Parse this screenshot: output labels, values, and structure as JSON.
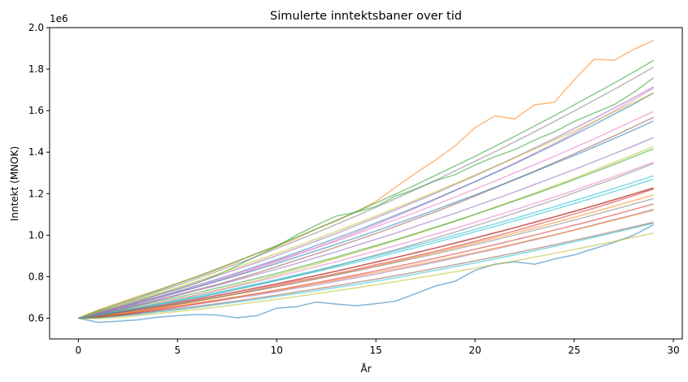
{
  "chart_data": {
    "type": "line",
    "title": "Simulerte inntektsbaner over tid",
    "xlabel": "År",
    "ylabel": "Inntekt (MNOK)",
    "offset_text": "1e6",
    "xlim": [
      -1.45,
      30.45
    ],
    "ylim": [
      500000,
      2000000
    ],
    "x_ticks": [
      0,
      5,
      10,
      15,
      20,
      25,
      30
    ],
    "x_tick_labels": [
      "0",
      "5",
      "10",
      "15",
      "20",
      "25",
      "30"
    ],
    "y_ticks": [
      600000,
      800000,
      1000000,
      1200000,
      1400000,
      1600000,
      1800000,
      2000000
    ],
    "y_tick_labels": [
      "0.6",
      "0.8",
      "1.0",
      "1.2",
      "1.4",
      "1.6",
      "1.8",
      "2.0"
    ],
    "grid": false,
    "legend": "none",
    "line_opacity": 0.55,
    "colors": [
      "#1f77b4",
      "#ff7f0e",
      "#2ca02c",
      "#d62728",
      "#9467bd",
      "#8c564b",
      "#e377c2",
      "#7f7f7f",
      "#bcbd22",
      "#17becf"
    ],
    "x": [
      0,
      1,
      2,
      3,
      4,
      5,
      6,
      7,
      8,
      9,
      10,
      11,
      12,
      13,
      14,
      15,
      16,
      17,
      18,
      19,
      20,
      21,
      22,
      23,
      24,
      25,
      26,
      27,
      28,
      29
    ],
    "series": [
      {
        "values": [
          600000,
          580000,
          585000,
          592000,
          605000,
          612000,
          618000,
          615000,
          602000,
          612000,
          648000,
          655000,
          678000,
          668000,
          660000,
          670000,
          682000,
          718000,
          755000,
          778000,
          830000,
          860000,
          872000,
          860000,
          885000,
          905000,
          935000,
          965000,
          1000000,
          1050000
        ]
      },
      {
        "values": [
          600000,
          640000,
          672000,
          705000,
          735000,
          768000,
          800000,
          835000,
          872000,
          912000,
          945000,
          985000,
          1030000,
          1070000,
          1112000,
          1162000,
          1232000,
          1298000,
          1362000,
          1430000,
          1518000,
          1575000,
          1560000,
          1628000,
          1640000,
          1748000,
          1848000,
          1842000,
          1895000,
          1938000
        ]
      },
      {
        "values": [
          600000,
          630000,
          652000,
          680000,
          712000,
          738000,
          770000,
          808000,
          852000,
          900000,
          945000,
          1000000,
          1048000,
          1092000,
          1110000,
          1138000,
          1188000,
          1222000,
          1262000,
          1292000,
          1338000,
          1378000,
          1412000,
          1458000,
          1498000,
          1548000,
          1588000,
          1628000,
          1688000,
          1758000
        ]
      },
      {
        "values": [
          600000,
          608000,
          618000,
          630000,
          648000,
          666000,
          682000,
          700000,
          718000,
          738000,
          758000,
          778000,
          795000,
          815000,
          835000,
          858000,
          878000,
          900000,
          922000,
          946000,
          970000,
          995000,
          1020000,
          1048000,
          1075000,
          1102000,
          1130000,
          1160000,
          1190000,
          1222000
        ]
      },
      {
        "values": [
          600000,
          606000,
          612000,
          625000,
          640000,
          652000,
          668000,
          682000,
          698000,
          712000,
          728000,
          745000,
          760000,
          778000,
          795000,
          812000,
          832000,
          850000,
          870000,
          890000,
          912000,
          932000,
          955000,
          978000,
          1000000,
          1025000,
          1050000,
          1075000,
          1098000,
          1125000
        ]
      },
      {
        "values": [
          600000,
          618000,
          640000,
          662000,
          688000,
          712000,
          738000,
          762000,
          790000,
          818000,
          848000,
          880000,
          910000,
          942000,
          975000,
          1008000,
          1042000,
          1078000,
          1112000,
          1150000,
          1188000,
          1228000,
          1268000,
          1308000,
          1350000,
          1392000,
          1435000,
          1478000,
          1522000,
          1568000
        ]
      },
      {
        "values": [
          600000,
          622000,
          645000,
          670000,
          695000,
          722000,
          750000,
          778000,
          808000,
          840000,
          872000,
          905000,
          940000,
          975000,
          1012000,
          1050000,
          1090000,
          1130000,
          1172000,
          1215000,
          1258000,
          1302000,
          1348000,
          1395000,
          1442000,
          1492000,
          1545000,
          1598000,
          1652000,
          1708000
        ]
      },
      {
        "values": [
          600000,
          612000,
          628000,
          645000,
          662000,
          680000,
          698000,
          718000,
          738000,
          760000,
          782000,
          805000,
          828000,
          852000,
          878000,
          904000,
          930000,
          958000,
          986000,
          1015000,
          1045000,
          1075000,
          1106000,
          1138000,
          1170000,
          1204000,
          1238000,
          1272000,
          1308000,
          1345000
        ]
      },
      {
        "values": [
          600000,
          615000,
          632000,
          650000,
          670000,
          690000,
          712000,
          735000,
          758000,
          782000,
          808000,
          834000,
          860000,
          888000,
          916000,
          945000,
          975000,
          1005000,
          1036000,
          1068000,
          1100000,
          1134000,
          1168000,
          1202000,
          1238000,
          1274000,
          1312000,
          1350000,
          1388000,
          1428000
        ]
      },
      {
        "values": [
          600000,
          602000,
          610000,
          618000,
          630000,
          640000,
          652000,
          665000,
          678000,
          690000,
          705000,
          718000,
          732000,
          748000,
          762000,
          778000,
          795000,
          812000,
          830000,
          848000,
          866000,
          885000,
          905000,
          925000,
          946000,
          968000,
          990000,
          1012000,
          1035000,
          1058000
        ]
      },
      {
        "values": [
          600000,
          625000,
          650000,
          676000,
          702000,
          730000,
          758000,
          788000,
          818000,
          850000,
          882000,
          915000,
          950000,
          985000,
          1020000,
          1058000,
          1096000,
          1135000,
          1175000,
          1216000,
          1258000,
          1300000,
          1344000,
          1390000,
          1436000,
          1484000,
          1532000,
          1582000,
          1632000,
          1685000
        ]
      },
      {
        "values": [
          600000,
          610000,
          622000,
          636000,
          650000,
          666000,
          682000,
          699000,
          716000,
          734000,
          752000,
          771000,
          790000,
          810000,
          830000,
          851000,
          872000,
          894000,
          916000,
          939000,
          962000,
          986000,
          1010000,
          1035000,
          1060000,
          1086000,
          1112000,
          1139000,
          1166000,
          1194000
        ]
      },
      {
        "values": [
          600000,
          620000,
          638000,
          658000,
          680000,
          700000,
          722000,
          745000,
          768000,
          792000,
          816000,
          842000,
          868000,
          894000,
          922000,
          950000,
          978000,
          1008000,
          1038000,
          1068000,
          1100000,
          1132000,
          1165000,
          1198000,
          1232000,
          1268000,
          1304000,
          1340000,
          1378000,
          1416000
        ]
      },
      {
        "values": [
          600000,
          605000,
          615000,
          628000,
          641000,
          655000,
          670000,
          686000,
          702000,
          718000,
          735000,
          753000,
          771000,
          790000,
          808000,
          828000,
          848000,
          868000,
          889000,
          910000,
          932000,
          954000,
          977000,
          1000000,
          1024000,
          1048000,
          1072000,
          1098000,
          1124000,
          1150000
        ]
      },
      {
        "values": [
          600000,
          628000,
          655000,
          684000,
          712000,
          742000,
          772000,
          804000,
          836000,
          868000,
          902000,
          937000,
          972000,
          1008000,
          1046000,
          1084000,
          1122000,
          1162000,
          1202000,
          1244000,
          1286000,
          1330000,
          1374000,
          1420000,
          1466000,
          1514000,
          1562000,
          1612000,
          1662000,
          1715000
        ]
      },
      {
        "values": [
          600000,
          612000,
          625000,
          640000,
          656000,
          672000,
          690000,
          708000,
          726000,
          745000,
          765000,
          785000,
          805000,
          826000,
          848000,
          870000,
          892000,
          915000,
          938000,
          962000,
          986000,
          1011000,
          1036000,
          1062000,
          1088000,
          1115000,
          1142000,
          1170000,
          1198000,
          1227000
        ]
      },
      {
        "values": [
          600000,
          618000,
          634000,
          652000,
          672000,
          692000,
          712000,
          733000,
          755000,
          777000,
          800000,
          824000,
          848000,
          872000,
          898000,
          924000,
          950000,
          977000,
          1005000,
          1033000,
          1062000,
          1092000,
          1122000,
          1153000,
          1184000,
          1216000,
          1249000,
          1282000,
          1316000,
          1351000
        ]
      },
      {
        "values": [
          600000,
          632000,
          662000,
          694000,
          726000,
          758000,
          792000,
          826000,
          862000,
          898000,
          936000,
          974000,
          1012000,
          1052000,
          1092000,
          1134000,
          1176000,
          1220000,
          1264000,
          1310000,
          1356000,
          1402000,
          1450000,
          1498000,
          1548000,
          1598000,
          1650000,
          1702000,
          1755000,
          1810000
        ]
      },
      {
        "values": [
          600000,
          598000,
          604000,
          612000,
          622000,
          632000,
          642000,
          654000,
          666000,
          678000,
          691000,
          704000,
          718000,
          732000,
          746000,
          761000,
          776000,
          792000,
          808000,
          824000,
          841000,
          858000,
          876000,
          894000,
          912000,
          931000,
          950000,
          970000,
          990000,
          1010000
        ]
      },
      {
        "values": [
          600000,
          616000,
          630000,
          646000,
          664000,
          682000,
          700000,
          720000,
          740000,
          760000,
          781000,
          802000,
          824000,
          846000,
          869000,
          892000,
          916000,
          940000,
          965000,
          990000,
          1016000,
          1042000,
          1069000,
          1096000,
          1124000,
          1152000,
          1181000,
          1210000,
          1240000,
          1270000
        ]
      },
      {
        "values": [
          600000,
          624000,
          648000,
          672000,
          698000,
          724000,
          750000,
          778000,
          806000,
          834000,
          864000,
          894000,
          925000,
          956000,
          988000,
          1020000,
          1054000,
          1088000,
          1122000,
          1158000,
          1194000,
          1230000,
          1268000,
          1306000,
          1345000,
          1384000,
          1424000,
          1465000,
          1507000,
          1550000
        ]
      },
      {
        "values": [
          600000,
          608000,
          620000,
          632000,
          645000,
          659000,
          673000,
          688000,
          703000,
          718000,
          734000,
          750000,
          767000,
          784000,
          802000,
          820000,
          838000,
          857000,
          876000,
          896000,
          916000,
          937000,
          958000,
          980000,
          1002000,
          1025000,
          1048000,
          1072000,
          1096000,
          1120000
        ]
      },
      {
        "values": [
          600000,
          636000,
          668000,
          700000,
          733000,
          767000,
          802000,
          838000,
          875000,
          912000,
          950000,
          990000,
          1030000,
          1070000,
          1112000,
          1155000,
          1198000,
          1242000,
          1288000,
          1334000,
          1380000,
          1428000,
          1476000,
          1526000,
          1576000,
          1628000,
          1680000,
          1732000,
          1786000,
          1842000
        ]
      },
      {
        "values": [
          600000,
          614000,
          628000,
          643000,
          658000,
          675000,
          692000,
          710000,
          728000,
          747000,
          766000,
          786000,
          806000,
          827000,
          848000,
          870000,
          892000,
          915000,
          938000,
          962000,
          986000,
          1011000,
          1036000,
          1062000,
          1088000,
          1115000,
          1142000,
          1170000,
          1199000,
          1228000
        ]
      },
      {
        "values": [
          600000,
          620000,
          642000,
          664000,
          686000,
          710000,
          734000,
          758000,
          784000,
          810000,
          836000,
          864000,
          892000,
          920000,
          950000,
          980000,
          1010000,
          1042000,
          1074000,
          1106000,
          1140000,
          1174000,
          1208000,
          1244000,
          1280000,
          1316000,
          1354000,
          1392000,
          1430000,
          1470000
        ]
      },
      {
        "values": [
          600000,
          604000,
          612000,
          622000,
          634000,
          645000,
          657000,
          670000,
          683000,
          697000,
          711000,
          726000,
          741000,
          756000,
          772000,
          788000,
          805000,
          822000,
          840000,
          858000,
          876000,
          895000,
          914000,
          934000,
          954000,
          975000,
          996000,
          1018000,
          1040000,
          1062000
        ]
      },
      {
        "values": [
          600000,
          626000,
          650000,
          676000,
          702000,
          729000,
          757000,
          786000,
          815000,
          845000,
          876000,
          907000,
          939000,
          972000,
          1005000,
          1040000,
          1075000,
          1110000,
          1147000,
          1184000,
          1222000,
          1260000,
          1300000,
          1340000,
          1380000,
          1422000,
          1464000,
          1508000,
          1552000,
          1596000
        ]
      },
      {
        "values": [
          600000,
          610000,
          624000,
          638000,
          653000,
          668000,
          684000,
          700000,
          717000,
          734000,
          752000,
          770000,
          789000,
          808000,
          828000,
          848000,
          868000,
          889000,
          910000,
          932000,
          954000,
          977000,
          1000000,
          1024000,
          1048000,
          1073000,
          1098000,
          1124000,
          1150000,
          1176000
        ]
      },
      {
        "values": [
          600000,
          630000,
          658000,
          688000,
          718000,
          748000,
          780000,
          812000,
          845000,
          878000,
          912000,
          947000,
          982000,
          1018000,
          1055000,
          1092000,
          1130000,
          1169000,
          1208000,
          1248000,
          1289000,
          1330000,
          1372000,
          1415000,
          1458000,
          1502000,
          1547000,
          1593000,
          1639000,
          1686000
        ]
      },
      {
        "values": [
          600000,
          616000,
          632000,
          650000,
          668000,
          686000,
          705000,
          725000,
          745000,
          766000,
          787000,
          809000,
          831000,
          854000,
          877000,
          901000,
          925000,
          950000,
          975000,
          1001000,
          1027000,
          1054000,
          1081000,
          1109000,
          1137000,
          1166000,
          1195000,
          1225000,
          1255000,
          1286000
        ]
      }
    ]
  }
}
